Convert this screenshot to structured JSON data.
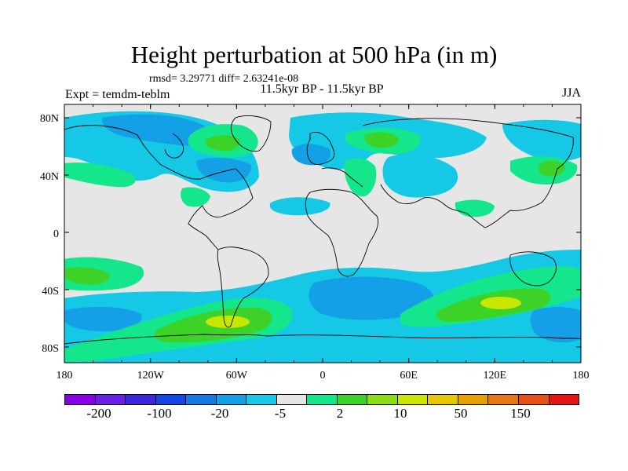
{
  "title": "Height perturbation at 500 hPa (in m)",
  "stats": "rmsd= 3.29771  diff= 2.63241e-08",
  "subtitle": "11.5kyr BP - 11.5kyr BP",
  "experiment": "Expt = temdm-teblm",
  "season": "JJA",
  "lat_ticks": [
    "80N",
    "40N",
    "0",
    "40S",
    "80S"
  ],
  "lon_ticks": [
    "180",
    "120W",
    "60W",
    "0",
    "60E",
    "120E",
    "180"
  ],
  "colorbar": {
    "colors": [
      "#8a00e6",
      "#6a1ee8",
      "#3c28dc",
      "#1446e6",
      "#1478e6",
      "#14a0e6",
      "#14c8e6",
      "#e6e6e6",
      "#14e68c",
      "#3cd228",
      "#8cdc14",
      "#c8e600",
      "#e6c800",
      "#e6a000",
      "#e67814",
      "#e65014",
      "#e61414"
    ],
    "labels": [
      "-200",
      "-100",
      "-20",
      "-5",
      "2",
      "10",
      "50",
      "150"
    ]
  },
  "map": {
    "background": "#e6e6e6",
    "coastline_color": "#000000"
  }
}
